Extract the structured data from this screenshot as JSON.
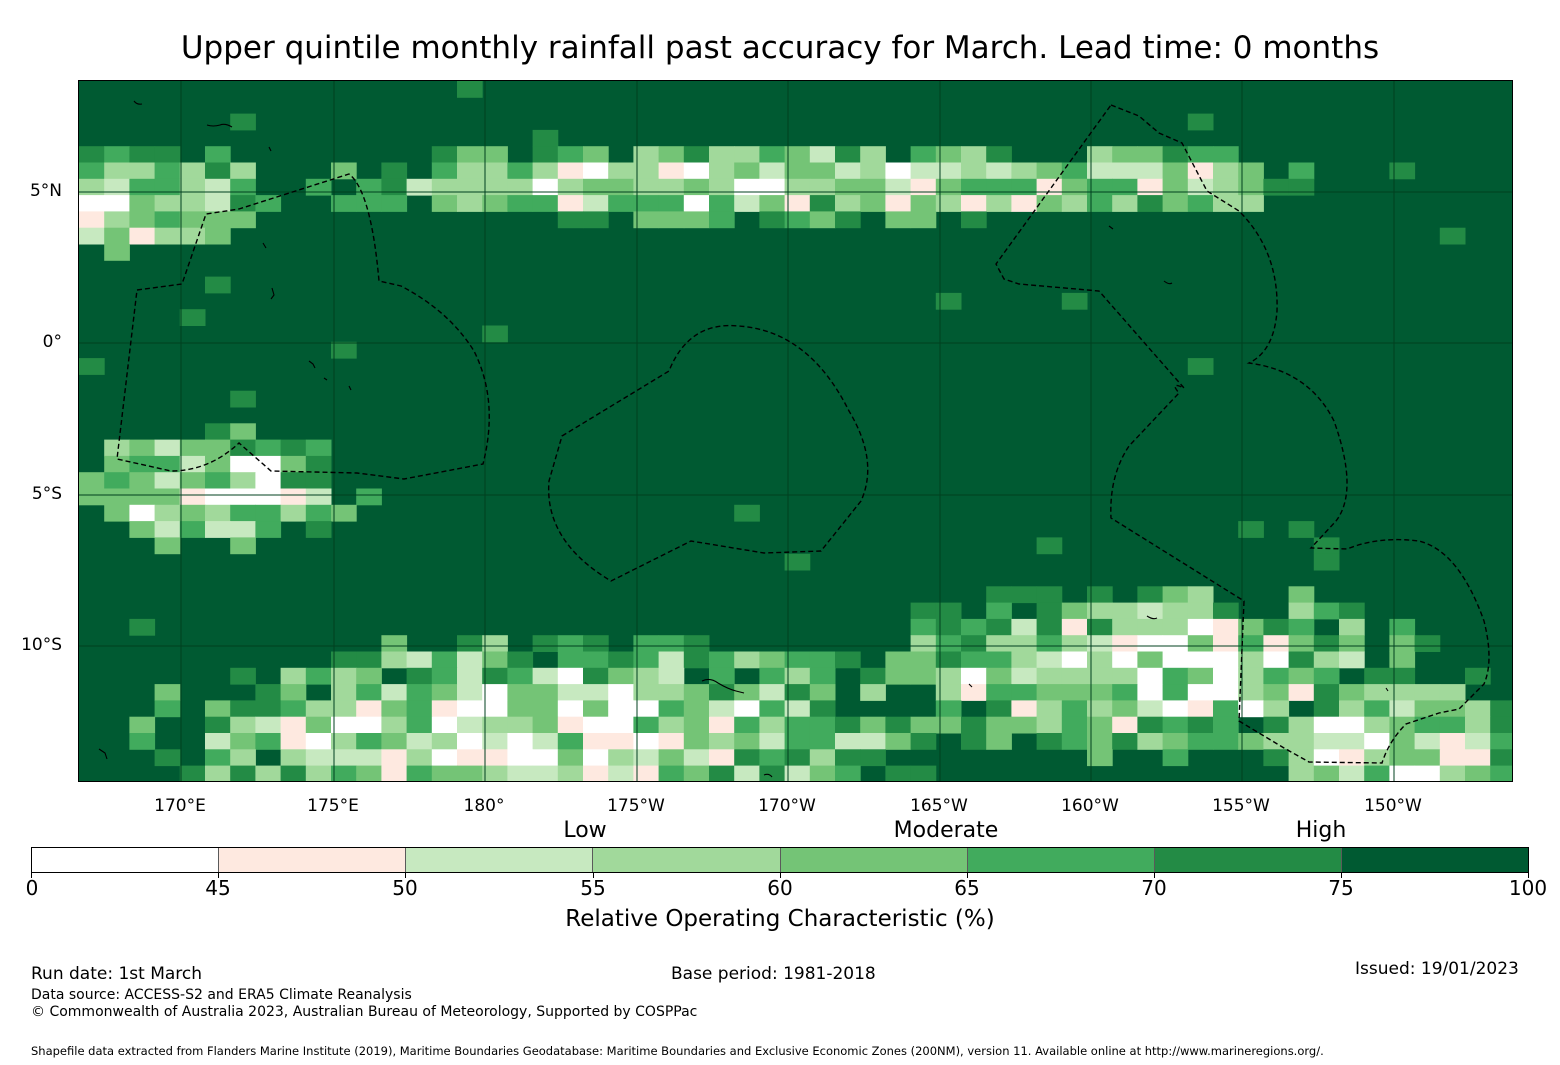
{
  "title": "Upper quintile monthly rainfall past accuracy for March. Lead time: 0 months",
  "map": {
    "lat_labels": [
      "5°N",
      "0°",
      "5°S",
      "10°S"
    ],
    "lon_labels": [
      "170°E",
      "175°E",
      "180°",
      "175°W",
      "170°W",
      "165°W",
      "160°W",
      "155°W",
      "150°W"
    ],
    "extent": {
      "lon_min": 166.6,
      "lon_max": 213.9,
      "lat_min": -14.6,
      "lat_max": 8.6
    },
    "ocean_color": "#005a32",
    "boundary_style": "dashed black lines (exclusive economic zones)"
  },
  "legend": {
    "categories": [
      "Low",
      "Moderate",
      "High"
    ],
    "colors": [
      "#ffffff",
      "#fee9e0",
      "#c7e9c0",
      "#a1d99b",
      "#74c476",
      "#41ab5d",
      "#238b45",
      "#005a32"
    ],
    "ticks": [
      "0",
      "45",
      "50",
      "55",
      "60",
      "65",
      "70",
      "75",
      "100"
    ],
    "axis_title": "Relative Operating Characteristic (%)"
  },
  "footer": {
    "run_date": "Run date: 1st March",
    "base_period": "Base period: 1981-2018",
    "issued": "Issued: 19/01/2023",
    "data_source": "Data source: ACCESS-S2 and ERA5 Climate Reanalysis",
    "copyright": "© Commonwealth of Australia 2023, Australian Bureau of Meteorology, Supported by COSPPac",
    "shapefile": "Shapefile data extracted from Flanders Marine Institute (2019), Maritime Boundaries Geodatabase: Maritime Boundaries and Exclusive Economic Zones (200NM), version 11. Available online at http://www.marineregions.org/."
  }
}
